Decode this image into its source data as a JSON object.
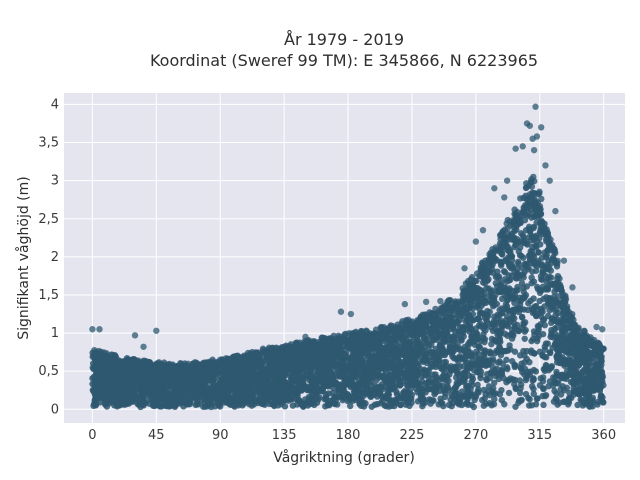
{
  "chart_data": {
    "type": "scatter",
    "title_line1": "År 1979 - 2019",
    "title_line2": "Koordinat (Sweref 99 TM): E 345866, N 6223965",
    "xlabel": "Vågriktning (grader)",
    "ylabel": "Signifikant våghöjd (m)",
    "xlim": [
      -20,
      375
    ],
    "ylim": [
      -0.18,
      4.15
    ],
    "xticks": [
      0,
      45,
      90,
      135,
      180,
      225,
      270,
      315,
      360
    ],
    "xtick_labels": [
      "0",
      "45",
      "90",
      "135",
      "180",
      "225",
      "270",
      "315",
      "360"
    ],
    "yticks": [
      0,
      0.5,
      1,
      1.5,
      2,
      2.5,
      3,
      3.5,
      4
    ],
    "ytick_labels": [
      "0",
      "0,5",
      "1",
      "1,5",
      "2",
      "2,5",
      "3",
      "3,5",
      "4"
    ],
    "grid": true,
    "marker_color": "#2e5870",
    "background_color": "#e5e5f0",
    "envelope": {
      "x": [
        0,
        10,
        20,
        30,
        40,
        50,
        60,
        70,
        80,
        90,
        100,
        110,
        120,
        130,
        140,
        150,
        160,
        170,
        180,
        190,
        200,
        210,
        220,
        230,
        240,
        250,
        260,
        270,
        280,
        290,
        300,
        305,
        310,
        315,
        320,
        325,
        330,
        335,
        340,
        350,
        360
      ],
      "upper": [
        0.75,
        0.7,
        0.65,
        0.62,
        0.6,
        0.58,
        0.57,
        0.58,
        0.6,
        0.63,
        0.66,
        0.7,
        0.75,
        0.78,
        0.82,
        0.85,
        0.88,
        0.92,
        0.95,
        0.98,
        1.0,
        1.05,
        1.1,
        1.15,
        1.25,
        1.35,
        1.5,
        1.7,
        2.0,
        2.3,
        2.6,
        2.85,
        2.9,
        2.7,
        2.4,
        2.1,
        1.6,
        1.3,
        1.1,
        0.9,
        0.8
      ]
    },
    "outliers": [
      {
        "x": 0,
        "y": 1.05
      },
      {
        "x": 5,
        "y": 1.05
      },
      {
        "x": 30,
        "y": 0.97
      },
      {
        "x": 36,
        "y": 0.82
      },
      {
        "x": 45,
        "y": 1.03
      },
      {
        "x": 90,
        "y": 0.65
      },
      {
        "x": 150,
        "y": 0.95
      },
      {
        "x": 175,
        "y": 1.28
      },
      {
        "x": 182,
        "y": 1.25
      },
      {
        "x": 220,
        "y": 1.38
      },
      {
        "x": 235,
        "y": 1.41
      },
      {
        "x": 245,
        "y": 1.42
      },
      {
        "x": 265,
        "y": 1.58
      },
      {
        "x": 262,
        "y": 1.85
      },
      {
        "x": 270,
        "y": 2.2
      },
      {
        "x": 275,
        "y": 2.35
      },
      {
        "x": 283,
        "y": 2.9
      },
      {
        "x": 290,
        "y": 2.78
      },
      {
        "x": 292,
        "y": 3.0
      },
      {
        "x": 298,
        "y": 3.42
      },
      {
        "x": 303,
        "y": 3.45
      },
      {
        "x": 306,
        "y": 3.75
      },
      {
        "x": 308,
        "y": 3.72
      },
      {
        "x": 310,
        "y": 3.55
      },
      {
        "x": 311,
        "y": 3.4
      },
      {
        "x": 313,
        "y": 3.58
      },
      {
        "x": 312,
        "y": 3.97
      },
      {
        "x": 316,
        "y": 3.7
      },
      {
        "x": 319,
        "y": 3.2
      },
      {
        "x": 322,
        "y": 3.0
      },
      {
        "x": 326,
        "y": 2.6
      },
      {
        "x": 332,
        "y": 1.95
      },
      {
        "x": 338,
        "y": 1.6
      },
      {
        "x": 355,
        "y": 1.08
      },
      {
        "x": 359,
        "y": 1.05
      }
    ]
  }
}
